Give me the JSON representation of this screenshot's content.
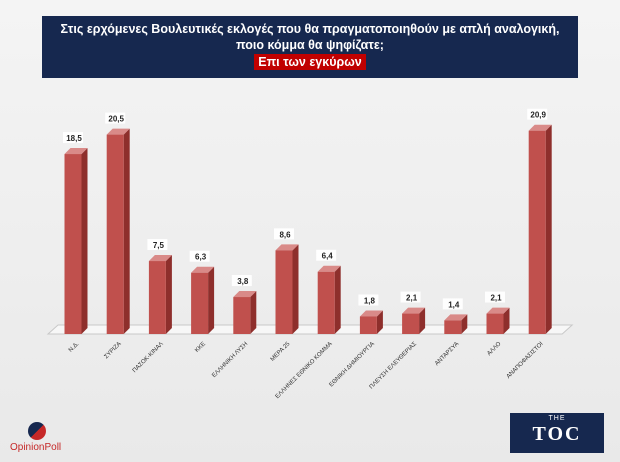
{
  "header": {
    "line1": "Στις ερχόμενες Βουλευτικές εκλογές που θα πραγματοποιηθούν με απλή αναλογική,",
    "line2": "ποιο κόμμα θα ψηφίζατε;",
    "subtitle": "Επι των εγκύρων"
  },
  "colors": {
    "bar": "#c0504d",
    "bar_side": "#8e2f2c",
    "bar_top": "#d98a88",
    "header_bg": "#16284f",
    "subtitle_bg": "#c00000"
  },
  "chart_data": {
    "type": "bar",
    "categories": [
      "Ν.Δ.",
      "ΣΥΡΙΖΑ",
      "ΠΑΣΟΚ-ΚΙΝΑΛ",
      "ΚΚΕ",
      "ΕΛΛΗΝΙΚΗ ΛΥΣΗ",
      "ΜΕΡΑ 25",
      "ΕΛΛΗΝΕΣ ΕΘΝΙΚΟ ΚΟΜΜΑ",
      "ΕΘΝΙΚΗ ΔΗΜΙΟΥΡΓΙΑ",
      "ΠΛΕΥΣΗ ΕΛΕΥΘΕΡΙΑΣ",
      "ΑΝΤΑΡΣΥΑ",
      "ΑΛΛΟ",
      "ΑΝΑΠΟΦΑΣΙΣΤΟΙ"
    ],
    "values": [
      18.5,
      20.5,
      7.5,
      6.3,
      3.8,
      8.6,
      6.4,
      1.8,
      2.1,
      1.4,
      2.1,
      20.9
    ],
    "data_labels": [
      "18,5",
      "20,5",
      "7,5",
      "6,3",
      "3,8",
      "8,6",
      "6,4",
      "1,8",
      "2,1",
      "1,4",
      "2,1",
      "20,9"
    ],
    "ylim": [
      0,
      22
    ],
    "grid": false,
    "legend": "none"
  },
  "logos": {
    "left_text": "OpinionPoll",
    "right_small": "THE",
    "right_big": "TOC"
  }
}
